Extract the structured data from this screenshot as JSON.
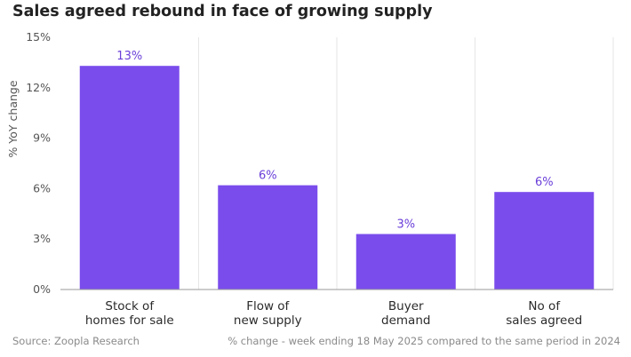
{
  "chart_data": {
    "type": "bar",
    "title": "Sales agreed rebound in face of growing supply",
    "ylabel": "% YoY change",
    "ylim": [
      0,
      15
    ],
    "yticks": [
      "0%",
      "3%",
      "6%",
      "9%",
      "12%",
      "15%"
    ],
    "categories": [
      [
        "Stock of",
        "homes for sale"
      ],
      [
        "Flow of",
        "new supply"
      ],
      [
        "Buyer",
        "demand"
      ],
      [
        "No of",
        "sales agreed"
      ]
    ],
    "values": [
      13.3,
      6.2,
      3.3,
      5.8
    ],
    "data_labels": [
      "13%",
      "6%",
      "3%",
      "6%"
    ],
    "grid": "vertical separators between categories",
    "colors": {
      "bar": "#7a4cec",
      "label": "#6a3fd9",
      "grid": "#e6e6e6",
      "axis": "#9a9a9a"
    }
  },
  "footer": {
    "source": "Source: Zoopla Research",
    "note": "% change - week ending 18 May 2025 compared to the same period in 2024"
  }
}
